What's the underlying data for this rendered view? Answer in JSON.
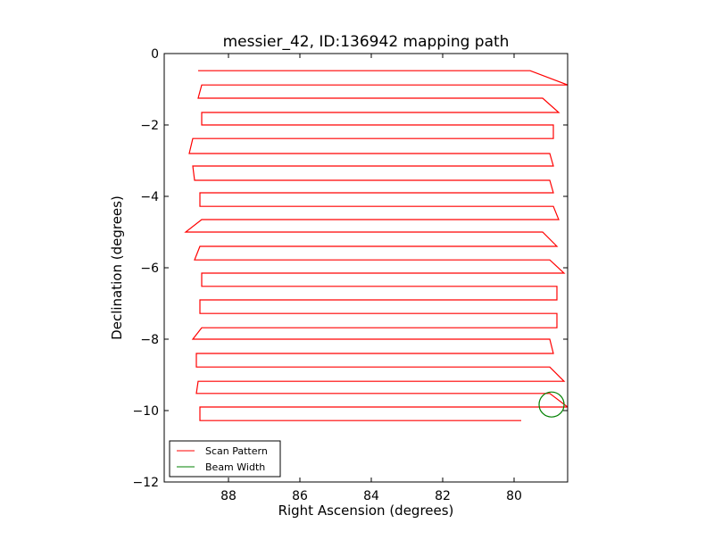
{
  "chart_data": {
    "type": "line",
    "title": "messier_42, ID:136942 mapping path",
    "xlabel": "Right Ascension (degrees)",
    "ylabel": "Declination (degrees)",
    "xlim": [
      89.8,
      78.5
    ],
    "ylim": [
      -12,
      0
    ],
    "x_inverted": true,
    "grid": false,
    "legend_position": "lower-left",
    "x_ticks": [
      88,
      86,
      84,
      82,
      80
    ],
    "x_tick_labels": [
      "88",
      "86",
      "84",
      "82",
      "80"
    ],
    "y_ticks": [
      0,
      -2,
      -4,
      -6,
      -8,
      -10,
      -12
    ],
    "y_tick_labels": [
      "0",
      "−2",
      "−4",
      "−6",
      "−8",
      "−10",
      "−12"
    ],
    "series": [
      {
        "name": "Scan Pattern",
        "color": "#ff0000",
        "points": [
          [
            88.85,
            -0.48
          ],
          [
            79.55,
            -0.48
          ],
          [
            78.5,
            -0.88
          ],
          [
            88.75,
            -0.88
          ],
          [
            88.85,
            -1.25
          ],
          [
            79.2,
            -1.25
          ],
          [
            78.75,
            -1.65
          ],
          [
            88.75,
            -1.65
          ],
          [
            88.75,
            -2.0
          ],
          [
            78.9,
            -2.0
          ],
          [
            78.9,
            -2.38
          ],
          [
            89.0,
            -2.38
          ],
          [
            89.1,
            -2.8
          ],
          [
            79.0,
            -2.8
          ],
          [
            78.9,
            -3.15
          ],
          [
            89.0,
            -3.15
          ],
          [
            88.95,
            -3.55
          ],
          [
            79.0,
            -3.55
          ],
          [
            78.9,
            -3.9
          ],
          [
            88.8,
            -3.9
          ],
          [
            88.8,
            -4.28
          ],
          [
            78.9,
            -4.28
          ],
          [
            78.75,
            -4.65
          ],
          [
            88.75,
            -4.65
          ],
          [
            89.2,
            -5.0
          ],
          [
            79.2,
            -5.0
          ],
          [
            78.8,
            -5.4
          ],
          [
            88.8,
            -5.4
          ],
          [
            88.95,
            -5.78
          ],
          [
            79.0,
            -5.78
          ],
          [
            78.6,
            -6.15
          ],
          [
            88.75,
            -6.15
          ],
          [
            88.75,
            -6.52
          ],
          [
            78.8,
            -6.52
          ],
          [
            78.8,
            -6.9
          ],
          [
            88.8,
            -6.9
          ],
          [
            88.8,
            -7.28
          ],
          [
            78.8,
            -7.28
          ],
          [
            78.8,
            -7.68
          ],
          [
            88.75,
            -7.68
          ],
          [
            89.0,
            -8.0
          ],
          [
            79.0,
            -8.0
          ],
          [
            78.9,
            -8.4
          ],
          [
            88.9,
            -8.4
          ],
          [
            88.9,
            -8.78
          ],
          [
            79.0,
            -8.78
          ],
          [
            78.6,
            -9.18
          ],
          [
            88.85,
            -9.18
          ],
          [
            88.9,
            -9.52
          ],
          [
            79.0,
            -9.52
          ],
          [
            78.5,
            -9.9
          ],
          [
            88.8,
            -9.9
          ],
          [
            88.8,
            -10.28
          ],
          [
            79.8,
            -10.28
          ]
        ]
      },
      {
        "name": "Beam Width",
        "color": "#008000",
        "shape": "circle",
        "center": [
          78.95,
          -9.83
        ],
        "radius": 0.35
      }
    ]
  }
}
